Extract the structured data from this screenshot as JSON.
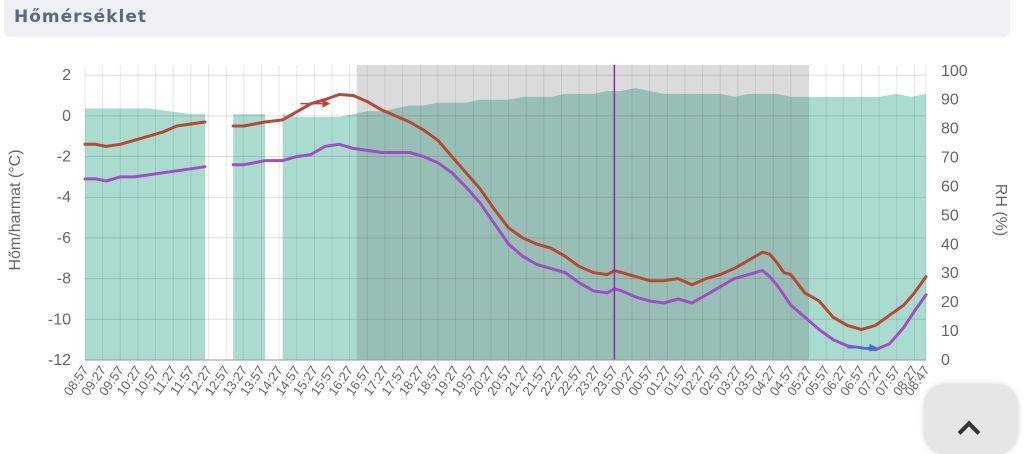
{
  "header": {
    "title": "Hőmérséklet"
  },
  "chart_data": {
    "type": "line",
    "ylabel_left": "Hőm/harmat (°C)",
    "ylabel_right": "RH (%)",
    "y_left_ticks": [
      "2",
      "0",
      "-2",
      "-4",
      "-6",
      "-8",
      "-10",
      "-12"
    ],
    "y_right_ticks": [
      "100",
      "90",
      "80",
      "70",
      "60",
      "50",
      "40",
      "30",
      "20",
      "10",
      "0"
    ],
    "ylim_left": [
      -12,
      2.5
    ],
    "ylim_right": [
      0,
      102
    ],
    "x_ticks": [
      "08:57",
      "09:27",
      "09:57",
      "10:27",
      "10:57",
      "11:27",
      "11:57",
      "12:27",
      "12:57",
      "13:27",
      "13:57",
      "14:27",
      "14:57",
      "15:27",
      "15:57",
      "16:27",
      "16:57",
      "17:27",
      "17:57",
      "18:27",
      "18:57",
      "19:27",
      "19:57",
      "20:27",
      "20:57",
      "21:27",
      "21:57",
      "22:27",
      "22:57",
      "23:27",
      "23:57",
      "00:27",
      "00:57",
      "01:27",
      "01:57",
      "02:27",
      "02:57",
      "03:27",
      "03:57",
      "04:27",
      "04:57",
      "05:27",
      "05:57",
      "06:27",
      "06:57",
      "07:27",
      "07:57",
      "08:27",
      "08:47"
    ],
    "x_range_hours": [
      0,
      23.83
    ],
    "night_shading_hours": [
      7.7,
      20.5
    ],
    "current_time_marker_hours": 15.0,
    "gap_hours": [
      5.25,
      5.55
    ],
    "colors": {
      "temperature": "#b8473a",
      "dewpoint": "#a04ec4",
      "humidity": "#a9dccf",
      "night": "#5a5a5a",
      "marker": "#8a2cb0"
    },
    "series": [
      {
        "key": "temperature",
        "x": [
          0,
          0.3,
          0.6,
          1.0,
          1.4,
          1.8,
          2.2,
          2.6,
          3.0,
          3.4,
          3.8,
          4.2,
          4.5,
          4.8,
          5.1,
          5.6,
          6.0,
          6.4,
          6.8,
          7.2,
          7.6,
          8.0,
          8.4,
          8.8,
          9.2,
          9.6,
          10.0,
          10.4,
          10.8,
          11.2,
          11.6,
          12.0,
          12.4,
          12.8,
          13.2,
          13.6,
          14.0,
          14.4,
          14.8,
          15.0,
          15.2,
          15.6,
          16.0,
          16.4,
          16.8,
          17.2,
          17.6,
          18.0,
          18.4,
          18.8,
          19.2,
          19.4,
          19.6,
          19.8,
          20.0,
          20.4,
          20.8,
          21.2,
          21.6,
          22.0,
          22.4,
          22.8,
          23.2,
          23.5,
          23.83
        ],
        "values": [
          -1.4,
          -1.4,
          -1.5,
          -1.4,
          -1.2,
          -1.0,
          -0.8,
          -0.5,
          -0.4,
          -0.3,
          null,
          -0.5,
          -0.5,
          -0.4,
          -0.3,
          -0.2,
          0.2,
          0.6,
          0.8,
          1.05,
          1.0,
          0.7,
          0.3,
          0.0,
          -0.3,
          -0.7,
          -1.2,
          -2.0,
          -2.8,
          -3.6,
          -4.6,
          -5.5,
          -6.0,
          -6.3,
          -6.5,
          -6.9,
          -7.4,
          -7.7,
          -7.8,
          -7.6,
          -7.7,
          -7.9,
          -8.1,
          -8.1,
          -8.0,
          -8.3,
          -8.0,
          -7.8,
          -7.5,
          -7.1,
          -6.7,
          -6.8,
          -7.2,
          -7.7,
          -7.8,
          -8.7,
          -9.1,
          -9.9,
          -10.3,
          -10.5,
          -10.3,
          -9.8,
          -9.3,
          -8.7,
          -7.9
        ]
      },
      {
        "key": "dewpoint",
        "x": [
          0,
          0.3,
          0.6,
          1.0,
          1.4,
          1.8,
          2.2,
          2.6,
          3.0,
          3.4,
          3.8,
          4.2,
          4.5,
          4.8,
          5.1,
          5.6,
          6.0,
          6.4,
          6.8,
          7.2,
          7.6,
          8.0,
          8.4,
          8.8,
          9.2,
          9.6,
          10.0,
          10.4,
          10.8,
          11.2,
          11.6,
          12.0,
          12.4,
          12.8,
          13.2,
          13.6,
          14.0,
          14.4,
          14.8,
          15.0,
          15.2,
          15.6,
          16.0,
          16.4,
          16.8,
          17.2,
          17.6,
          18.0,
          18.4,
          18.8,
          19.2,
          19.4,
          19.6,
          19.8,
          20.0,
          20.4,
          20.8,
          21.2,
          21.6,
          22.0,
          22.4,
          22.8,
          23.2,
          23.5,
          23.83
        ],
        "values": [
          -3.1,
          -3.1,
          -3.2,
          -3.0,
          -3.0,
          -2.9,
          -2.8,
          -2.7,
          -2.6,
          -2.5,
          null,
          -2.4,
          -2.4,
          -2.3,
          -2.2,
          -2.2,
          -2.0,
          -1.9,
          -1.5,
          -1.4,
          -1.6,
          -1.7,
          -1.8,
          -1.8,
          -1.8,
          -2.0,
          -2.3,
          -2.8,
          -3.5,
          -4.3,
          -5.3,
          -6.3,
          -6.9,
          -7.3,
          -7.5,
          -7.7,
          -8.2,
          -8.6,
          -8.7,
          -8.5,
          -8.6,
          -8.9,
          -9.1,
          -9.2,
          -9.0,
          -9.2,
          -8.8,
          -8.4,
          -8.0,
          -7.8,
          -7.6,
          -7.9,
          -8.3,
          -8.8,
          -9.3,
          -9.9,
          -10.5,
          -11.0,
          -11.3,
          -11.4,
          -11.5,
          -11.2,
          -10.4,
          -9.6,
          -8.8
        ]
      },
      {
        "key": "humidity",
        "x": [
          0,
          0.6,
          1.2,
          1.8,
          2.4,
          3.0,
          3.4,
          3.8,
          4.2,
          4.8,
          5.1,
          5.6,
          6.0,
          6.4,
          6.8,
          7.2,
          7.6,
          8.0,
          8.4,
          8.8,
          9.2,
          9.6,
          10.0,
          10.4,
          10.8,
          11.2,
          11.6,
          12.0,
          12.4,
          12.8,
          13.2,
          13.6,
          14.0,
          14.4,
          14.8,
          15.0,
          15.2,
          15.6,
          16.0,
          16.4,
          16.8,
          17.2,
          17.6,
          18.0,
          18.4,
          18.8,
          19.2,
          19.6,
          20.0,
          20.5,
          21.0,
          21.5,
          22.0,
          22.5,
          23.0,
          23.4,
          23.83
        ],
        "values": [
          87,
          87,
          87,
          87,
          86,
          85,
          85,
          null,
          85,
          85,
          85,
          85,
          84,
          84,
          84,
          84,
          85,
          86,
          86,
          87,
          88,
          88,
          89,
          89,
          89,
          90,
          90,
          90,
          91,
          91,
          91,
          92,
          92,
          92,
          93,
          93,
          93,
          94,
          93,
          92,
          92,
          92,
          92,
          92,
          91,
          92,
          92,
          92,
          91,
          91,
          91,
          91,
          91,
          91,
          92,
          91,
          92
        ]
      }
    ],
    "annotations": [
      {
        "type": "arrow",
        "direction": "right",
        "series": "temperature",
        "x_hours": 6.5
      },
      {
        "type": "arrow",
        "direction": "right",
        "series": "dewpoint",
        "x_hours": 22.0
      }
    ],
    "legend": "none",
    "grid": true
  }
}
